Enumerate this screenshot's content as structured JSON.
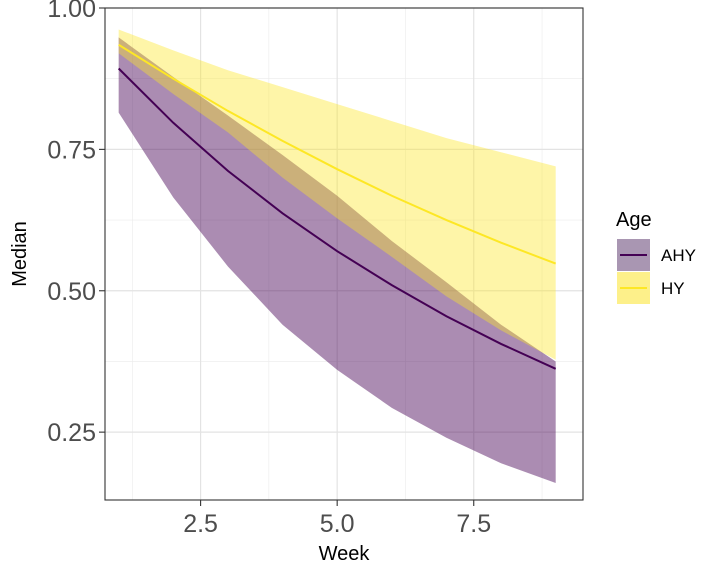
{
  "chart_data": {
    "type": "line",
    "xlabel": "Week",
    "ylabel": "Median",
    "xlim": [
      0.75,
      9.5
    ],
    "ylim": [
      0.13,
      1.0
    ],
    "x_ticks": [
      2.5,
      5.0,
      7.5
    ],
    "x_tick_labels": [
      "2.5",
      "5.0",
      "7.5"
    ],
    "y_ticks": [
      0.25,
      0.5,
      0.75,
      1.0
    ],
    "y_tick_labels": [
      "0.25",
      "0.50",
      "0.75",
      "1.00"
    ],
    "grid": true,
    "legend": {
      "title": "Age",
      "position": "right"
    },
    "x": [
      1,
      2,
      3,
      4,
      5,
      6,
      7,
      8,
      9
    ],
    "series": [
      {
        "name": "AHY",
        "color": "#440154",
        "ribbon_color": "#a996b2",
        "values": [
          0.893,
          0.797,
          0.712,
          0.637,
          0.57,
          0.51,
          0.455,
          0.406,
          0.362
        ],
        "lower": [
          0.815,
          0.665,
          0.543,
          0.44,
          0.36,
          0.293,
          0.24,
          0.195,
          0.16
        ],
        "upper": [
          0.948,
          0.878,
          0.81,
          0.74,
          0.668,
          0.588,
          0.515,
          0.44,
          0.375
        ]
      },
      {
        "name": "HY",
        "color": "#fde725",
        "ribbon_color": "#fdf08a",
        "values": [
          0.935,
          0.875,
          0.818,
          0.765,
          0.715,
          0.668,
          0.625,
          0.585,
          0.548
        ],
        "lower": [
          0.92,
          0.848,
          0.78,
          0.7,
          0.628,
          0.56,
          0.49,
          0.43,
          0.378
        ],
        "upper": [
          0.962,
          0.925,
          0.89,
          0.86,
          0.83,
          0.8,
          0.77,
          0.745,
          0.72
        ]
      }
    ]
  }
}
